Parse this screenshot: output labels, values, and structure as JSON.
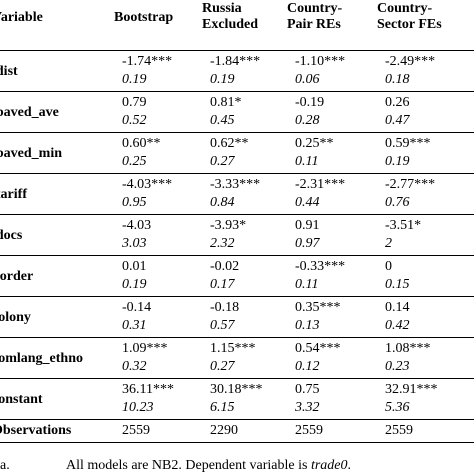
{
  "headers": {
    "variable": "Variable",
    "col1": [
      "Bootstrap"
    ],
    "col2": [
      "Russia",
      "Excluded"
    ],
    "col3": [
      "Country-",
      "Pair REs"
    ],
    "col4": [
      "Country-",
      "Sector FEs"
    ]
  },
  "rows": [
    {
      "name": "ldist",
      "est": [
        "-1.74***",
        "-1.84***",
        "-1.10***",
        "-2.49***"
      ],
      "se": [
        "0.19",
        "0.19",
        "0.06",
        "0.18"
      ]
    },
    {
      "name": "lpaved_ave",
      "est": [
        "0.79",
        "0.81*",
        "-0.19",
        "0.26"
      ],
      "se": [
        "0.52",
        "0.45",
        "0.28",
        "0.47"
      ]
    },
    {
      "name": "lpaved_min",
      "est": [
        "0.60**",
        "0.62**",
        "0.25**",
        "0.59***"
      ],
      "se": [
        "0.25",
        "0.27",
        "0.11",
        "0.19"
      ]
    },
    {
      "name": "ltariff",
      "est": [
        "-4.03***",
        "-3.33***",
        "-2.31***",
        "-2.77***"
      ],
      "se": [
        "0.95",
        "0.84",
        "0.44",
        "0.76"
      ]
    },
    {
      "name": "ldocs",
      "est": [
        "-4.03",
        "-3.93*",
        "0.91",
        "-3.51*"
      ],
      "se": [
        "3.03",
        "2.32",
        "0.97",
        "2"
      ]
    },
    {
      "name": "border",
      "est": [
        "0.01",
        "-0.02",
        "-0.33***",
        "0"
      ],
      "se": [
        "0.19",
        "0.17",
        "0.11",
        "0.15"
      ]
    },
    {
      "name": "colony",
      "est": [
        "-0.14",
        "-0.18",
        "0.35***",
        "0.14"
      ],
      "se": [
        "0.31",
        "0.57",
        "0.13",
        "0.42"
      ]
    },
    {
      "name": "comlang_ethno",
      "est": [
        "1.09***",
        "1.15***",
        "0.54***",
        "1.08***"
      ],
      "se": [
        "0.32",
        "0.27",
        "0.12",
        "0.23"
      ]
    },
    {
      "name": "constant",
      "est": [
        "36.11***",
        "30.18***",
        "0.75",
        "32.91***"
      ],
      "se": [
        "10.23",
        "6.15",
        "3.32",
        "5.36"
      ]
    }
  ],
  "observations": {
    "label": "Observations",
    "values": [
      "2559",
      "2290",
      "2559",
      "2559"
    ]
  },
  "note": {
    "label": "a.",
    "text": "All models are NB2. Dependent variable is ",
    "dep_var": "trade0",
    "end": "."
  }
}
